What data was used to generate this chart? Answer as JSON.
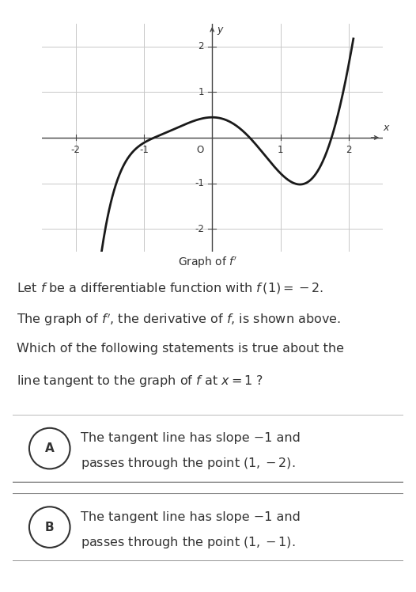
{
  "graph_title": "Graph of $f'$",
  "xlim": [
    -2.5,
    2.5
  ],
  "ylim": [
    -2.5,
    2.5
  ],
  "xlabel": "x",
  "ylabel": "y",
  "curve_color": "#1a1a1a",
  "grid_color": "#c8c8c8",
  "axis_color": "#444444",
  "bg_color": "#ffffff",
  "text_color": "#333333",
  "option_A_line1": "The tangent line has slope −1 and",
  "option_A_line2": "passes through the point $(1, -2)$.",
  "option_B_line1": "The tangent line has slope −1 and",
  "option_B_line2": "passes through the point $(1, -1)$.",
  "box_edge_color": "#888888",
  "box_face_color": "#ffffff",
  "curve_key_x": [
    -1.6,
    -0.85,
    -0.3,
    0.55,
    1.2,
    1.75,
    2.05
  ],
  "curve_key_y": [
    -2.3,
    0.0,
    0.35,
    0.0,
    -1.0,
    0.0,
    2.0
  ]
}
